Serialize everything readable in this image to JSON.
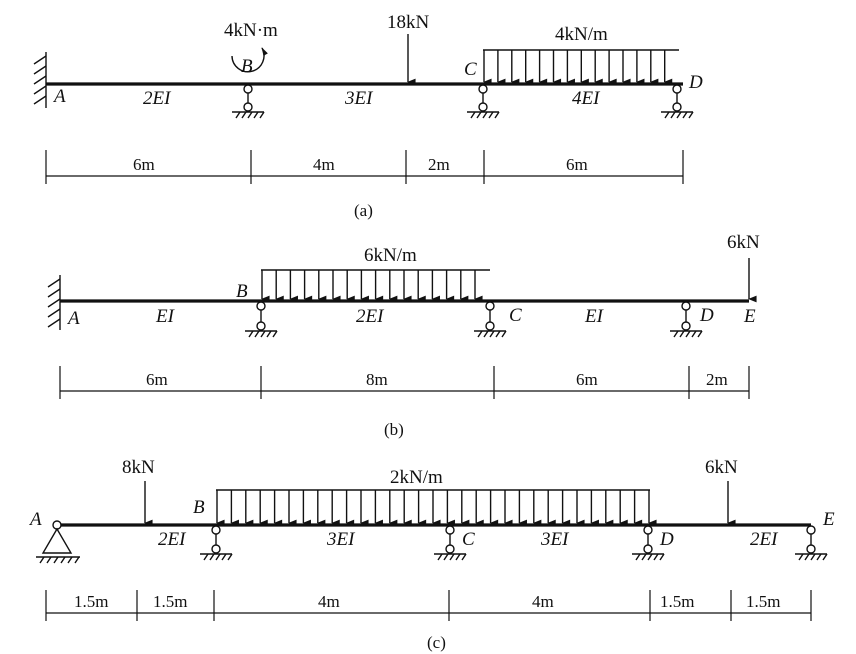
{
  "diagrams": [
    {
      "caption": "(a)",
      "nodes": [
        "A",
        "B",
        "C",
        "D"
      ],
      "stiffness": [
        "2EI",
        "3EI",
        "4EI"
      ],
      "loads": {
        "moment": "4kN·m",
        "point": "18kN",
        "distributed": "4kN/m"
      },
      "dimensions": [
        "6m",
        "4m",
        "2m",
        "6m"
      ]
    },
    {
      "caption": "(b)",
      "nodes": [
        "A",
        "B",
        "C",
        "D",
        "E"
      ],
      "stiffness": [
        "EI",
        "2EI",
        "EI"
      ],
      "loads": {
        "distributed": "6kN/m",
        "point": "6kN"
      },
      "dimensions": [
        "6m",
        "8m",
        "6m",
        "2m"
      ]
    },
    {
      "caption": "(c)",
      "nodes": [
        "A",
        "B",
        "C",
        "D",
        "E"
      ],
      "stiffness": [
        "2EI",
        "3EI",
        "3EI",
        "2EI"
      ],
      "loads": {
        "point_left": "8kN",
        "distributed": "2kN/m",
        "point_right": "6kN"
      },
      "dimensions": [
        "1.5m",
        "1.5m",
        "4m",
        "4m",
        "1.5m",
        "1.5m"
      ]
    }
  ]
}
